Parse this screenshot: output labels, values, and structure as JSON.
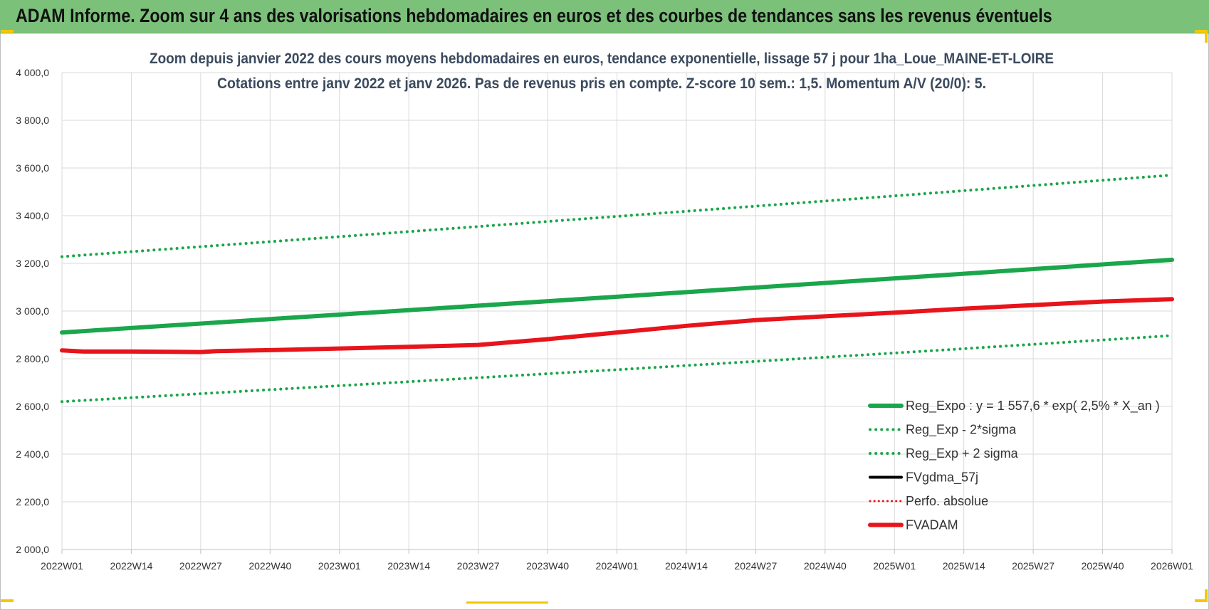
{
  "banner": {
    "title": "ADAM Informe. Zoom sur 4 ans des valorisations hebdomadaires en euros et des courbes de tendances sans les revenus éventuels",
    "color": "#7bc17a"
  },
  "chart_data": {
    "type": "line",
    "title_lines": [
      "Zoom depuis janvier 2022 des cours moyens hebdomadaires en euros, tendance exponentielle, lissage 57 j pour 1ha_Loue_MAINE-ET-LOIRE",
      "Cotations entre janv 2022 et janv 2026. Pas de revenus pris en compte. Z-score 10 sem.: 1,5. Momentum A/V (20/0): 5."
    ],
    "x_tick_labels": [
      "2022W01",
      "2022W14",
      "2022W27",
      "2022W40",
      "2023W01",
      "2023W14",
      "2023W27",
      "2023W40",
      "2024W01",
      "2024W14",
      "2024W27",
      "2024W40",
      "2025W01",
      "2025W14",
      "2025W27",
      "2025W40",
      "2026W01"
    ],
    "y_tick_labels": [
      "4 000,0",
      "3 800,0",
      "3 600,0",
      "3 400,0",
      "3 200,0",
      "3 000,0",
      "2 800,0",
      "2 600,0",
      "2 400,0",
      "2 200,0",
      "2 000,0"
    ],
    "ylim": [
      2000,
      4000
    ],
    "x_range": [
      0,
      208
    ],
    "grid": true,
    "legend_position": "bottom-right",
    "series": [
      {
        "name": "Reg_Expo : y = 1 557,6 * exp( 2,5% * X_an )",
        "color": "#1aa64b",
        "style": "solid-thick",
        "x": [
          0,
          52,
          104,
          156,
          208
        ],
        "y": [
          2910,
          2985,
          3060,
          3137,
          3215
        ]
      },
      {
        "name": "Reg_Exp - 2*sigma",
        "color": "#1aa64b",
        "style": "dotted",
        "x": [
          0,
          52,
          104,
          156,
          208
        ],
        "y": [
          2620,
          2687,
          2754,
          2824,
          2897
        ]
      },
      {
        "name": "Reg_Exp + 2 sigma",
        "color": "#1aa64b",
        "style": "dotted",
        "x": [
          0,
          52,
          104,
          156,
          208
        ],
        "y": [
          3228,
          3312,
          3397,
          3483,
          3570
        ]
      },
      {
        "name": "FVgdma_57j",
        "color": "#000000",
        "style": "solid",
        "x": [],
        "y": []
      },
      {
        "name": "Perfo. absolue",
        "color": "#e8141b",
        "style": "dotted-thin",
        "x": [],
        "y": []
      },
      {
        "name": "FVADAM",
        "color": "#e8141b",
        "style": "solid-thick",
        "x": [
          0,
          4,
          13,
          26,
          29,
          39,
          52,
          65,
          78,
          91,
          104,
          117,
          130,
          143,
          156,
          169,
          182,
          195,
          208
        ],
        "y": [
          2835,
          2830,
          2830,
          2828,
          2832,
          2836,
          2843,
          2850,
          2858,
          2882,
          2910,
          2938,
          2962,
          2978,
          2993,
          3010,
          3025,
          3040,
          3050
        ]
      }
    ]
  }
}
